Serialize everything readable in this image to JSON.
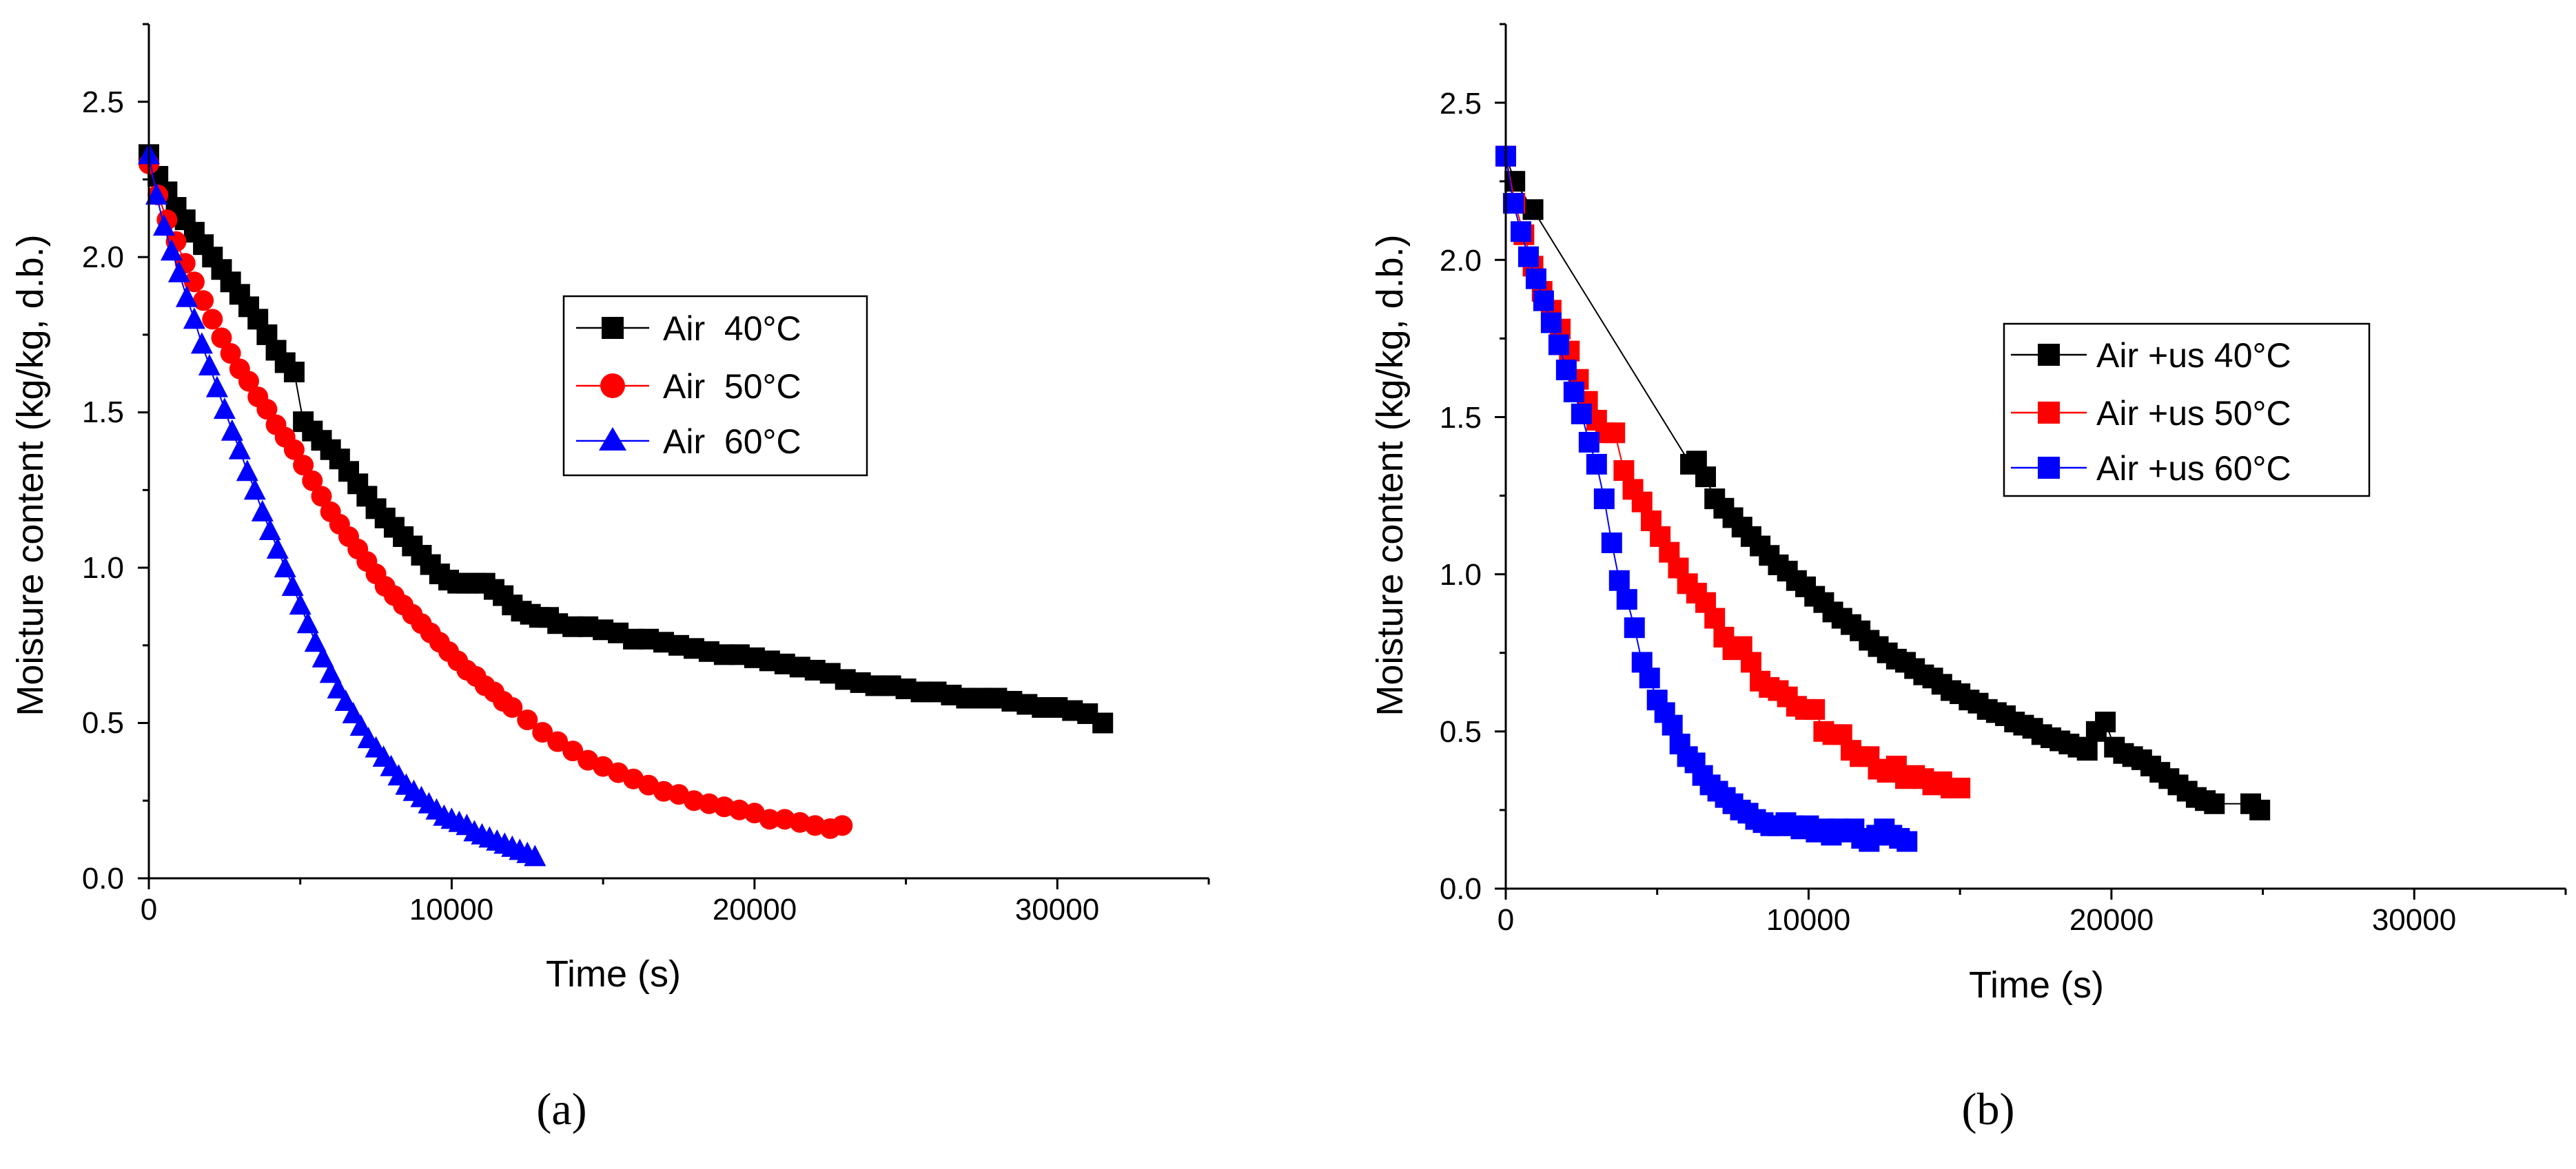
{
  "figure": {
    "panels": [
      "(a)",
      "(b)"
    ]
  },
  "chart_data": [
    {
      "type": "scatter",
      "panel_label": "(a)",
      "title": "",
      "xlabel": "Time (s)",
      "ylabel": "Moisture content (kg/kg, d.b.)",
      "xlim": [
        0,
        35000
      ],
      "ylim": [
        0,
        2.75
      ],
      "xticks": [
        0,
        10000,
        20000,
        30000
      ],
      "xtick_labels": [
        "0",
        "10000",
        "20000",
        "30000"
      ],
      "yticks": [
        0.0,
        0.5,
        1.0,
        1.5,
        2.0,
        2.5
      ],
      "ytick_labels": [
        "0.0",
        "0.5",
        "1.0",
        "1.5",
        "2.0",
        "2.5"
      ],
      "legend_position": "center-right",
      "series": [
        {
          "name": "Air  40°C",
          "marker": "square",
          "color": "#000000",
          "x": [
            0,
            300,
            600,
            900,
            1200,
            1500,
            1800,
            2100,
            2400,
            2700,
            3000,
            3300,
            3600,
            3900,
            4200,
            4500,
            4800,
            5100,
            5400,
            5700,
            6000,
            6300,
            6600,
            6900,
            7200,
            7500,
            7800,
            8100,
            8400,
            8700,
            9000,
            9300,
            9600,
            9900,
            10200,
            10500,
            10800,
            11100,
            11400,
            11700,
            12000,
            12300,
            12600,
            12900,
            13200,
            13500,
            14000,
            14500,
            15000,
            15500,
            16000,
            16500,
            17000,
            17500,
            18000,
            18500,
            19000,
            19500,
            20000,
            20500,
            21000,
            21500,
            22000,
            22500,
            23000,
            23500,
            24000,
            24500,
            25000,
            25500,
            26000,
            26500,
            27000,
            27500,
            28000,
            28500,
            29000,
            29500,
            30000,
            30500,
            31000,
            31500
          ],
          "y": [
            2.33,
            2.26,
            2.21,
            2.16,
            2.12,
            2.08,
            2.04,
            2.0,
            1.96,
            1.92,
            1.88,
            1.84,
            1.8,
            1.75,
            1.7,
            1.66,
            1.63,
            1.47,
            1.44,
            1.41,
            1.38,
            1.35,
            1.31,
            1.27,
            1.23,
            1.19,
            1.16,
            1.13,
            1.1,
            1.07,
            1.04,
            1.01,
            0.98,
            0.96,
            0.95,
            0.95,
            0.95,
            0.95,
            0.93,
            0.91,
            0.88,
            0.86,
            0.85,
            0.84,
            0.84,
            0.82,
            0.81,
            0.81,
            0.8,
            0.79,
            0.77,
            0.77,
            0.76,
            0.75,
            0.74,
            0.73,
            0.72,
            0.72,
            0.71,
            0.7,
            0.69,
            0.68,
            0.67,
            0.66,
            0.64,
            0.63,
            0.62,
            0.62,
            0.61,
            0.6,
            0.6,
            0.59,
            0.58,
            0.58,
            0.58,
            0.57,
            0.56,
            0.55,
            0.55,
            0.54,
            0.53,
            0.5
          ]
        },
        {
          "name": "Air  50°C",
          "marker": "circle",
          "color": "#ff0000",
          "x": [
            0,
            300,
            600,
            900,
            1200,
            1500,
            1800,
            2100,
            2400,
            2700,
            3000,
            3300,
            3600,
            3900,
            4200,
            4500,
            4800,
            5100,
            5400,
            5700,
            6000,
            6300,
            6600,
            6900,
            7200,
            7500,
            7800,
            8100,
            8400,
            8700,
            9000,
            9300,
            9600,
            9900,
            10200,
            10500,
            10800,
            11100,
            11400,
            11700,
            12000,
            12500,
            13000,
            13500,
            14000,
            14500,
            15000,
            15500,
            16000,
            16500,
            17000,
            17500,
            18000,
            18500,
            19000,
            19500,
            20000,
            20500,
            21000,
            21500,
            22000,
            22500,
            22900
          ],
          "y": [
            2.3,
            2.2,
            2.12,
            2.05,
            1.98,
            1.92,
            1.86,
            1.8,
            1.74,
            1.69,
            1.64,
            1.6,
            1.55,
            1.51,
            1.46,
            1.42,
            1.38,
            1.33,
            1.28,
            1.23,
            1.18,
            1.14,
            1.1,
            1.06,
            1.02,
            0.98,
            0.94,
            0.91,
            0.88,
            0.85,
            0.82,
            0.79,
            0.76,
            0.73,
            0.7,
            0.67,
            0.65,
            0.62,
            0.6,
            0.57,
            0.55,
            0.51,
            0.47,
            0.44,
            0.41,
            0.38,
            0.36,
            0.34,
            0.32,
            0.3,
            0.28,
            0.27,
            0.25,
            0.24,
            0.23,
            0.22,
            0.21,
            0.19,
            0.19,
            0.18,
            0.17,
            0.16,
            0.17
          ]
        },
        {
          "name": "Air  60°C",
          "marker": "triangle",
          "color": "#0000ff",
          "x": [
            0,
            250,
            500,
            750,
            1000,
            1250,
            1500,
            1750,
            2000,
            2250,
            2500,
            2750,
            3000,
            3250,
            3500,
            3750,
            4000,
            4250,
            4500,
            4750,
            5000,
            5250,
            5500,
            5750,
            6000,
            6250,
            6500,
            6750,
            7000,
            7250,
            7500,
            7750,
            8000,
            8250,
            8500,
            8750,
            9000,
            9250,
            9500,
            9750,
            10000,
            10250,
            10500,
            10750,
            11000,
            11250,
            11500,
            11750,
            12000,
            12250,
            12500,
            12750
          ],
          "y": [
            2.33,
            2.2,
            2.1,
            2.02,
            1.95,
            1.87,
            1.8,
            1.72,
            1.65,
            1.58,
            1.51,
            1.44,
            1.38,
            1.31,
            1.25,
            1.18,
            1.12,
            1.06,
            1.0,
            0.94,
            0.88,
            0.82,
            0.76,
            0.71,
            0.66,
            0.61,
            0.57,
            0.53,
            0.49,
            0.45,
            0.42,
            0.39,
            0.36,
            0.33,
            0.3,
            0.28,
            0.26,
            0.24,
            0.22,
            0.2,
            0.19,
            0.18,
            0.17,
            0.15,
            0.14,
            0.13,
            0.12,
            0.11,
            0.1,
            0.09,
            0.08,
            0.07
          ]
        }
      ]
    },
    {
      "type": "scatter",
      "panel_label": "(b)",
      "title": "",
      "xlabel": "Time (s)",
      "ylabel": "Moisture content (kg/kg, d.b.)",
      "xlim": [
        0,
        35000
      ],
      "ylim": [
        0,
        2.75
      ],
      "xticks": [
        0,
        10000,
        20000,
        30000
      ],
      "xtick_labels": [
        "0",
        "10000",
        "20000",
        "30000"
      ],
      "yticks": [
        0.0,
        0.5,
        1.0,
        1.5,
        2.0,
        2.5
      ],
      "ytick_labels": [
        "0.0",
        "0.5",
        "1.0",
        "1.5",
        "2.0",
        "2.5"
      ],
      "legend_position": "center-right",
      "series": [
        {
          "name": "Air +us 40°C",
          "marker": "square",
          "color": "#000000",
          "x": [
            0,
            300,
            900,
            6100,
            6300,
            6600,
            6900,
            7200,
            7500,
            7800,
            8100,
            8400,
            8700,
            9000,
            9300,
            9600,
            9900,
            10200,
            10500,
            10800,
            11100,
            11400,
            11700,
            12000,
            12300,
            12600,
            12900,
            13200,
            13500,
            13800,
            14100,
            14400,
            14700,
            15000,
            15300,
            15600,
            15900,
            16200,
            16500,
            16800,
            17100,
            17400,
            17700,
            18000,
            18300,
            18600,
            18900,
            19200,
            19500,
            19800,
            20100,
            20400,
            20700,
            21000,
            21300,
            21600,
            21900,
            22200,
            22500,
            22800,
            23100,
            23400,
            24600,
            24900
          ],
          "y": [
            2.33,
            2.25,
            2.16,
            1.35,
            1.36,
            1.31,
            1.24,
            1.21,
            1.18,
            1.15,
            1.12,
            1.09,
            1.06,
            1.03,
            1.01,
            0.98,
            0.96,
            0.93,
            0.91,
            0.88,
            0.86,
            0.84,
            0.82,
            0.79,
            0.77,
            0.75,
            0.73,
            0.72,
            0.7,
            0.68,
            0.67,
            0.65,
            0.63,
            0.62,
            0.6,
            0.59,
            0.57,
            0.56,
            0.55,
            0.53,
            0.52,
            0.51,
            0.49,
            0.48,
            0.47,
            0.46,
            0.45,
            0.44,
            0.5,
            0.53,
            0.45,
            0.43,
            0.42,
            0.41,
            0.39,
            0.37,
            0.35,
            0.33,
            0.31,
            0.29,
            0.28,
            0.27,
            0.27,
            0.25
          ]
        },
        {
          "name": "Air +us 50°C",
          "marker": "square",
          "color": "#ff0000",
          "x": [
            0,
            300,
            600,
            900,
            1200,
            1500,
            1800,
            2100,
            2400,
            2700,
            3000,
            3300,
            3600,
            3900,
            4200,
            4500,
            4800,
            5100,
            5400,
            5700,
            6000,
            6300,
            6600,
            6900,
            7200,
            7500,
            7800,
            8100,
            8400,
            8700,
            9000,
            9300,
            9600,
            9900,
            10200,
            10500,
            10800,
            11100,
            11400,
            11700,
            12000,
            12300,
            12600,
            12900,
            13200,
            13500,
            13800,
            14100,
            14400,
            14700,
            15000
          ],
          "y": [
            2.33,
            2.18,
            2.08,
            1.98,
            1.9,
            1.84,
            1.78,
            1.71,
            1.62,
            1.55,
            1.49,
            1.45,
            1.45,
            1.33,
            1.27,
            1.23,
            1.17,
            1.12,
            1.07,
            1.02,
            0.97,
            0.94,
            0.91,
            0.86,
            0.8,
            0.76,
            0.77,
            0.72,
            0.66,
            0.64,
            0.63,
            0.61,
            0.58,
            0.57,
            0.57,
            0.5,
            0.49,
            0.49,
            0.44,
            0.42,
            0.42,
            0.38,
            0.37,
            0.39,
            0.35,
            0.36,
            0.35,
            0.33,
            0.34,
            0.32,
            0.32
          ]
        },
        {
          "name": "Air +us 60°C",
          "marker": "square",
          "color": "#0000ff",
          "x": [
            0,
            250,
            500,
            750,
            1000,
            1250,
            1500,
            1750,
            2000,
            2250,
            2500,
            2750,
            3000,
            3250,
            3500,
            3750,
            4000,
            4250,
            4500,
            4750,
            5000,
            5250,
            5500,
            5750,
            6000,
            6250,
            6500,
            6750,
            7000,
            7250,
            7500,
            7750,
            8000,
            8250,
            8500,
            8750,
            9000,
            9250,
            9500,
            9750,
            10000,
            10250,
            10500,
            10750,
            11000,
            11250,
            11500,
            11750,
            12000,
            12250,
            12500,
            12750,
            13000,
            13250
          ],
          "y": [
            2.33,
            2.18,
            2.09,
            2.01,
            1.94,
            1.87,
            1.8,
            1.73,
            1.65,
            1.58,
            1.51,
            1.42,
            1.35,
            1.24,
            1.1,
            0.98,
            0.92,
            0.83,
            0.72,
            0.67,
            0.6,
            0.56,
            0.52,
            0.46,
            0.42,
            0.4,
            0.36,
            0.33,
            0.31,
            0.29,
            0.27,
            0.25,
            0.24,
            0.22,
            0.21,
            0.2,
            0.2,
            0.21,
            0.2,
            0.19,
            0.2,
            0.18,
            0.19,
            0.17,
            0.19,
            0.18,
            0.19,
            0.16,
            0.15,
            0.17,
            0.19,
            0.17,
            0.16,
            0.15
          ]
        }
      ]
    }
  ]
}
